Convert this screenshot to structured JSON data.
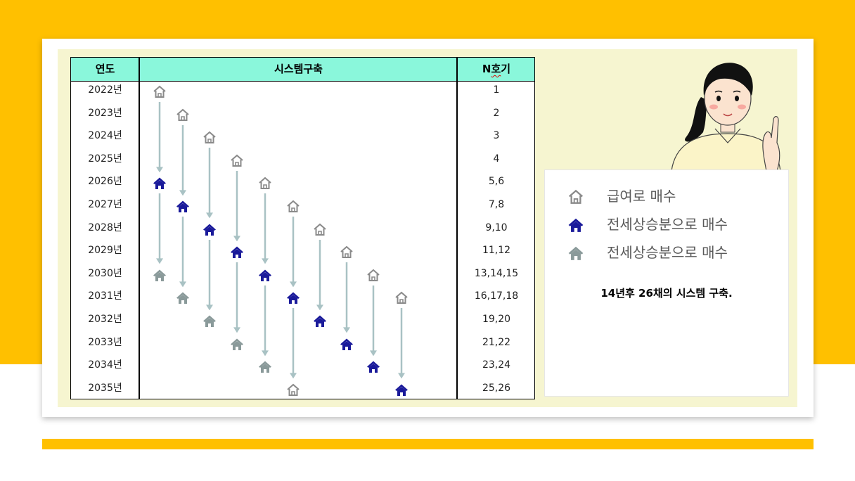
{
  "table": {
    "headers": {
      "year": "연도",
      "system": "시스템구축",
      "n_prefix": "N",
      "n_ho": "호",
      "n_suffix": "기"
    },
    "rows": [
      {
        "year": "2022년",
        "n": "1"
      },
      {
        "year": "2023년",
        "n": "2"
      },
      {
        "year": "2024년",
        "n": "3"
      },
      {
        "year": "2025년",
        "n": "4"
      },
      {
        "year": "2026년",
        "n": "5,6"
      },
      {
        "year": "2027년",
        "n": "7,8"
      },
      {
        "year": "2028년",
        "n": "9,10"
      },
      {
        "year": "2029년",
        "n": "11,12"
      },
      {
        "year": "2030년",
        "n": "13,14,15"
      },
      {
        "year": "2031년",
        "n": "16,17,18"
      },
      {
        "year": "2032년",
        "n": "19,20"
      },
      {
        "year": "2033년",
        "n": "21,22"
      },
      {
        "year": "2034년",
        "n": "23,24"
      },
      {
        "year": "2035년",
        "n": "25,26"
      }
    ]
  },
  "icons": {
    "salary": {
      "name": "house-outline-icon",
      "color": "#8a8a8a"
    },
    "jeonse_blue": {
      "name": "house-blue-icon",
      "color": "#1a1a9a"
    },
    "jeonse_gray": {
      "name": "house-gray-icon",
      "color": "#8a9a9a"
    }
  },
  "legend": {
    "items": [
      {
        "icon": "house-outline-icon",
        "label": "급여로 매수"
      },
      {
        "icon": "house-blue-icon",
        "label": "전세상승분으로 매수"
      },
      {
        "icon": "house-gray-icon",
        "label": "전세상승분으로 매수"
      }
    ],
    "summary": "14년후 26채의 시스템 구축."
  },
  "colors": {
    "background_band": "#FFC000",
    "panel": "#F6F5D0",
    "header": "#8AF7DB",
    "arrow": "#A9C2C4"
  }
}
